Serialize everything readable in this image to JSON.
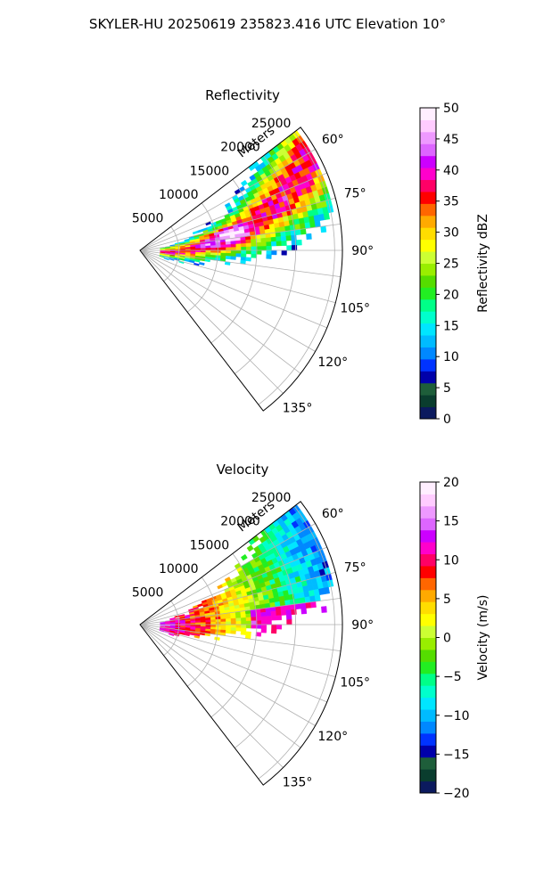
{
  "figure": {
    "suptitle": "SKYLER-HU  20250619  235823.416 UTC Elevation 10°"
  },
  "chart_data": [
    {
      "type": "heatmap",
      "projection": "polar-sector",
      "title": "Reflectivity",
      "radial_label": "Meters",
      "radial_ticks": [
        5000,
        10000,
        15000,
        20000,
        25000
      ],
      "radial_tick_labels": [
        "5000",
        "10000",
        "15000",
        "20000",
        "25000"
      ],
      "azimuth_range_deg": [
        52.5,
        142.5
      ],
      "azimuth_ticks": [
        60,
        75,
        90,
        105,
        120,
        135
      ],
      "azimuth_tick_labels": [
        "60°",
        "75°",
        "90°",
        "105°",
        "120°",
        "135°"
      ],
      "grid": true,
      "colorbar": {
        "label": "Reflectivity dBZ",
        "range": [
          0,
          50
        ],
        "ticks": [
          "0",
          "5",
          "10",
          "15",
          "20",
          "25",
          "30",
          "35",
          "40",
          "45",
          "50"
        ],
        "colors": [
          "#0b1a5e",
          "#0a3d2e",
          "#1e5e3a",
          "#0000aa",
          "#0033ff",
          "#0088ff",
          "#00bbff",
          "#00e6ff",
          "#00ffcc",
          "#00ff88",
          "#22ee22",
          "#55dd00",
          "#99ee00",
          "#ccff33",
          "#ffff00",
          "#ffdd00",
          "#ffaa00",
          "#ff6600",
          "#ff0000",
          "#ff0066",
          "#ff00cc",
          "#cc00ff",
          "#dd66ff",
          "#ee99ff",
          "#ffccff",
          "#ffeeff"
        ]
      },
      "echo": "contiguous echo spanning roughly azimuth 58–98°, range 3–26 km; cores 35–45 dBZ near azimuth 70–85°, range 8–18 km"
    },
    {
      "type": "heatmap",
      "projection": "polar-sector",
      "title": "Velocity",
      "radial_label": "Meters",
      "radial_ticks": [
        5000,
        10000,
        15000,
        20000,
        25000
      ],
      "radial_tick_labels": [
        "5000",
        "10000",
        "15000",
        "20000",
        "25000"
      ],
      "azimuth_range_deg": [
        52.5,
        142.5
      ],
      "azimuth_ticks": [
        60,
        75,
        90,
        105,
        120,
        135
      ],
      "azimuth_tick_labels": [
        "60°",
        "75°",
        "90°",
        "105°",
        "120°",
        "135°"
      ],
      "grid": true,
      "colorbar": {
        "label": "Velocity (m/s)",
        "range": [
          -20,
          20
        ],
        "ticks": [
          "−20",
          "−15",
          "−10",
          "−5",
          "0",
          "5",
          "10",
          "15",
          "20"
        ],
        "colors": [
          "#0b1a5e",
          "#0a3d2e",
          "#1e5e3a",
          "#0000aa",
          "#0033ff",
          "#0088ff",
          "#00bbff",
          "#00e6ff",
          "#00ffcc",
          "#00ff88",
          "#22ee22",
          "#55dd00",
          "#99ee00",
          "#ccff33",
          "#ffff00",
          "#ffdd00",
          "#ffaa00",
          "#ff6600",
          "#ff0000",
          "#ff0066",
          "#ff00cc",
          "#cc00ff",
          "#dd66ff",
          "#ee99ff",
          "#ffccff",
          "#ffeeff"
        ]
      },
      "echo": "outbound ~+10 to +15 m/s near radar (azimuth 80–100°, range 3–10 km); inbound ~−10 to −15 m/s at far range (azimuth 55–75°, range 14–26 km)"
    }
  ]
}
